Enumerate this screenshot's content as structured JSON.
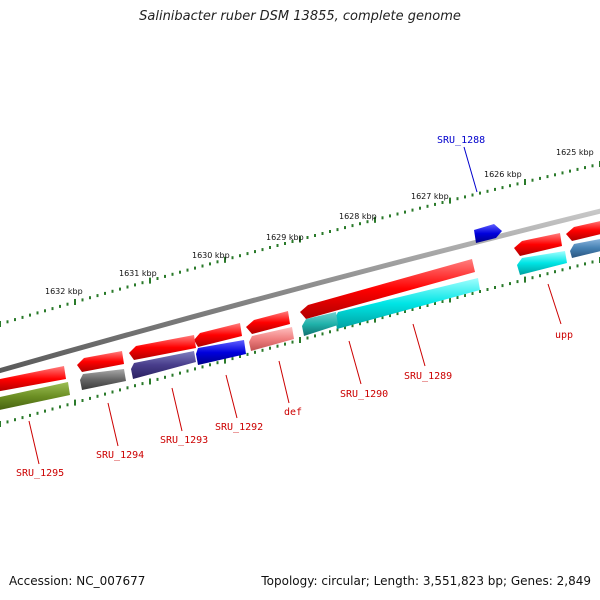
{
  "title": "Salinibacter ruber DSM 13855, complete genome",
  "accession": "Accession: NC_007677",
  "topology": "Topology: circular; Length: 3,551,823 bp; Genes: 2,849",
  "ruler_labels": [
    "1625 kbp",
    "1626 kbp",
    "1627 kbp",
    "1628 kbp",
    "1629 kbp",
    "1630 kbp",
    "1631 kbp",
    "1632 kbp"
  ],
  "gene_labels": [
    {
      "text": "SRU_1288",
      "strand": "forward",
      "color": "#0000cc"
    },
    {
      "text": "upp",
      "strand": "reverse",
      "color": "#cc0000"
    },
    {
      "text": "SRU_1289",
      "strand": "reverse",
      "color": "#cc0000"
    },
    {
      "text": "SRU_1290",
      "strand": "reverse",
      "color": "#cc0000"
    },
    {
      "text": "def",
      "strand": "reverse",
      "color": "#cc0000"
    },
    {
      "text": "SRU_1292",
      "strand": "reverse",
      "color": "#cc0000"
    },
    {
      "text": "SRU_1293",
      "strand": "reverse",
      "color": "#cc0000"
    },
    {
      "text": "SRU_1294",
      "strand": "reverse",
      "color": "#cc0000"
    },
    {
      "text": "SRU_1295",
      "strand": "reverse",
      "color": "#cc0000"
    }
  ],
  "colors": {
    "cds": "#ff0000",
    "backbone": "#888888",
    "ticks": "#2a7a2a",
    "cyan": "#00e5e5",
    "blue": "#0000dd",
    "gray": "#666666",
    "olive": "#6b8e23",
    "pink": "#f08080",
    "steel": "#4682b4"
  }
}
